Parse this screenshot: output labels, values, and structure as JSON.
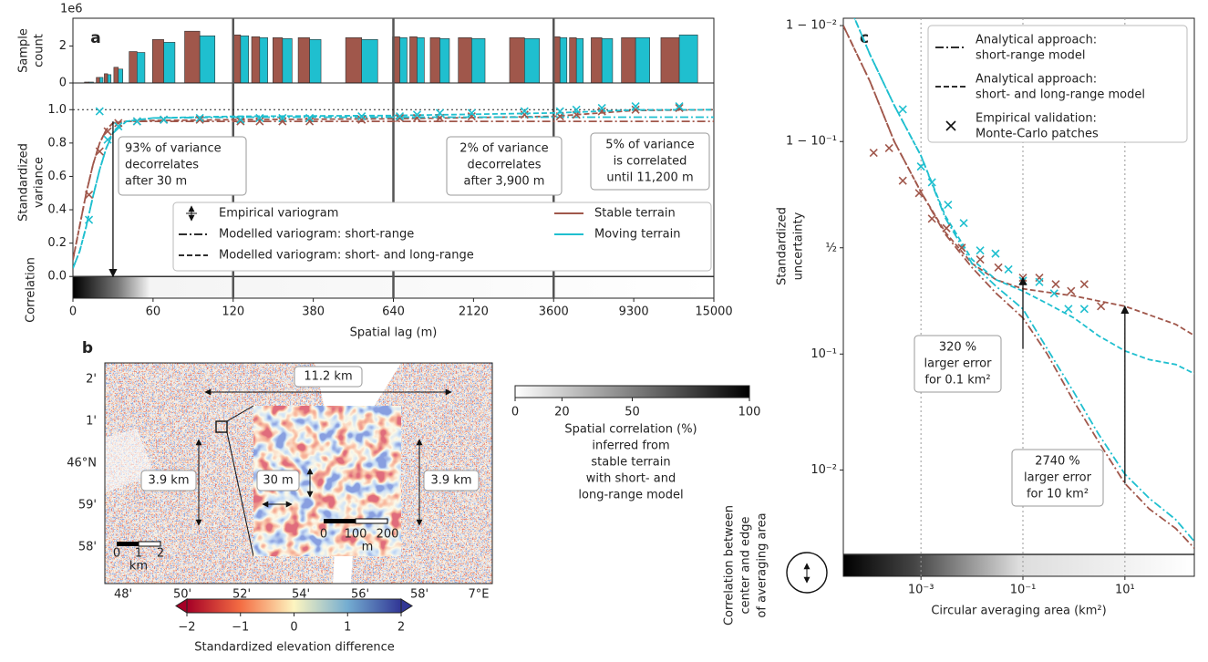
{
  "chart_data": [
    {
      "type": "bar",
      "panel": "a",
      "ylabel": [
        "Sample",
        "count"
      ],
      "offset_label": "1e6",
      "x": [
        12,
        20,
        26,
        34,
        48,
        68,
        95,
        144,
        206,
        280,
        368,
        537,
        758,
        1077,
        1498,
        2086,
        3062,
        4053,
        5219,
        7033,
        9430,
        12539
      ],
      "series": [
        {
          "color": "#a0574b",
          "values": [
            0.05,
            0.3,
            0.5,
            0.85,
            1.7,
            2.35,
            2.8,
            2.6,
            2.5,
            2.45,
            2.45,
            2.45,
            2.5,
            2.5,
            2.45,
            2.45,
            2.45,
            2.5,
            2.45,
            2.45,
            2.45,
            2.45
          ]
        },
        {
          "color": "#1fbfcf",
          "values": [
            0.05,
            0.3,
            0.45,
            0.75,
            1.65,
            2.2,
            2.55,
            2.55,
            2.45,
            2.4,
            2.35,
            2.35,
            2.45,
            2.45,
            2.4,
            2.4,
            2.4,
            2.45,
            2.4,
            2.4,
            2.45,
            2.6
          ]
        }
      ],
      "ylim": [
        0,
        3.5
      ],
      "yticks": [
        0,
        2
      ]
    },
    {
      "type": "line",
      "xscale": "piecewise",
      "ylabel": [
        "Standardized",
        "variance"
      ],
      "strip_label": "Correlation",
      "xlabel": "Spatial lag (m)",
      "xlim": [
        0,
        15000
      ],
      "xticks": [
        0,
        60,
        120,
        380,
        640,
        2120,
        3600,
        9300,
        15000
      ],
      "ylim": [
        -0.13,
        1.16
      ],
      "yticks": [
        {
          "value": 0,
          "label": "0.0"
        },
        {
          "value": 0.2,
          "label": "0.2"
        },
        {
          "value": 0.4,
          "label": "0.4"
        },
        {
          "value": 0.6,
          "label": "0.6"
        },
        {
          "value": 0.8,
          "label": "0.8"
        },
        {
          "value": 1,
          "label": "1.0"
        }
      ],
      "hline": 1,
      "curve_x": [
        0,
        5,
        10,
        15,
        20,
        25,
        30,
        40,
        60,
        120,
        640,
        3600,
        9300,
        15000
      ],
      "series": [
        {
          "color": "#a0574b",
          "style": "dashdot",
          "values": [
            0.1,
            0.3,
            0.5,
            0.67,
            0.8,
            0.88,
            0.92,
            0.93,
            0.93,
            0.93,
            0.93,
            0.93,
            0.93,
            0.93
          ]
        },
        {
          "color": "#a0574b",
          "style": "dashed",
          "values": [
            0.1,
            0.3,
            0.5,
            0.67,
            0.8,
            0.88,
            0.92,
            0.93,
            0.935,
            0.94,
            0.945,
            0.96,
            0.995,
            1.0
          ]
        },
        {
          "color": "#1fbfcf",
          "style": "dashdot",
          "values": [
            0.05,
            0.15,
            0.3,
            0.48,
            0.64,
            0.77,
            0.86,
            0.93,
            0.95,
            0.955,
            0.955,
            0.955,
            0.955,
            0.955
          ]
        },
        {
          "color": "#1fbfcf",
          "style": "dashed",
          "values": [
            0.05,
            0.15,
            0.3,
            0.48,
            0.64,
            0.77,
            0.86,
            0.93,
            0.95,
            0.96,
            0.965,
            0.98,
            0.998,
            1.0
          ]
        }
      ],
      "points": [
        {
          "color": "#a0574b",
          "x": [
            12,
            20,
            26,
            34,
            48,
            68,
            95,
            144,
            206,
            280,
            368,
            537,
            758,
            1077,
            1498,
            2086,
            3062,
            4053,
            5219,
            7033,
            9430,
            12539
          ],
          "values": [
            0.49,
            0.75,
            0.87,
            0.92,
            0.93,
            0.94,
            0.94,
            0.93,
            0.93,
            0.93,
            0.93,
            0.94,
            0.95,
            0.95,
            0.95,
            0.96,
            0.97,
            0.96,
            0.97,
            0.99,
            1.0,
            1.01
          ]
        },
        {
          "color": "#1fbfcf",
          "x": [
            12,
            20,
            26,
            34,
            48,
            68,
            95,
            144,
            206,
            280,
            368,
            537,
            758,
            1077,
            1498,
            2086,
            3062,
            4053,
            5219,
            7033,
            9430,
            12539
          ],
          "values": [
            0.34,
            0.99,
            0.82,
            0.9,
            0.93,
            0.94,
            0.95,
            0.94,
            0.95,
            0.95,
            0.95,
            0.96,
            0.96,
            0.97,
            0.98,
            0.98,
            0.99,
            0.99,
            1.0,
            1.01,
            1.02,
            1.02
          ]
        }
      ],
      "arrows": [
        {
          "x": 30,
          "from": 0.93,
          "to": 0
        }
      ],
      "annotations": [
        [
          "93% of variance",
          "decorrelates",
          "after 30 m"
        ],
        [
          "2% of variance",
          "decorrelates",
          "after 3,900 m"
        ],
        [
          "5% of variance",
          "is correlated",
          "until 11,200 m"
        ]
      ],
      "legend_styles": [
        {
          "label": "Empirical variogram",
          "style": "errorbar"
        },
        {
          "label": "Modelled variogram: short-range",
          "style": "dashdot"
        },
        {
          "label": "Modelled variogram: short- and long-range",
          "style": "dashed"
        }
      ],
      "legend_colors": [
        {
          "label": "Stable terrain",
          "color": "#a0574b"
        },
        {
          "label": "Moving terrain",
          "color": "#1fbfcf"
        }
      ]
    },
    {
      "type": "map",
      "panel": "b",
      "lat_labels": [
        "2'",
        "1'",
        "46°N",
        "59'",
        "58'"
      ],
      "lon_labels": [
        "48'",
        "50'",
        "52'",
        "54'",
        "56'",
        "58'",
        "7°E"
      ],
      "scale_labels": [
        "0",
        "1",
        "2",
        "km"
      ],
      "inset_scale_labels": [
        "0",
        "100",
        "200",
        "m"
      ],
      "distance_labels": [
        "11.2 km",
        "3.9 km",
        "3.9 km",
        "30 m"
      ],
      "colorbar": {
        "lim": [
          -2,
          2
        ],
        "ticks": [
          {
            "value": -2,
            "label": "−2"
          },
          {
            "value": -1,
            "label": "−1"
          },
          0,
          1,
          2
        ],
        "label": "Standardized elevation difference",
        "colors": [
          "#a50026",
          "#f46d43",
          "#fdf5c0",
          "#74add1",
          "#313695"
        ]
      },
      "correlation_colorbar": {
        "lim": [
          0,
          100
        ],
        "ticks": [
          0,
          20,
          50,
          100
        ],
        "label": [
          "Spatial correlation (%)",
          "inferred from",
          "stable terrain",
          "with short- and",
          "long-range model"
        ]
      }
    },
    {
      "type": "line",
      "panel": "c",
      "xscale": "log",
      "yscale": "logit",
      "grid": "x",
      "ylabel": [
        "Standardized",
        "uncertainty"
      ],
      "xlabel": "Circular averaging area (km²)",
      "side_label": [
        "Correlation between",
        "center and edge",
        "of averaging area"
      ],
      "xlim": [
        3e-05,
        230
      ],
      "xticks": [
        {
          "value": 0.001,
          "label": "10⁻³"
        },
        {
          "value": 0.1,
          "label": "10⁻¹"
        },
        {
          "value": 10,
          "label": "10¹"
        }
      ],
      "ylim": [
        0.00112,
        0.9914
      ],
      "yticks": [
        {
          "value": 0.99,
          "label": "1 − 10⁻²"
        },
        {
          "value": 0.9,
          "label": "1 − 10⁻¹"
        },
        {
          "value": 0.5,
          "label": "½"
        },
        {
          "value": 0.1,
          "label": "10⁻¹"
        },
        {
          "value": 0.01,
          "label": "10⁻²"
        }
      ],
      "curve_x": [
        3e-05,
        0.0001,
        0.0003,
        0.001,
        0.003,
        0.01,
        0.03,
        0.1,
        0.3,
        1,
        3,
        10,
        30,
        100,
        230
      ],
      "series": [
        {
          "color": "#a0574b",
          "style": "dashdot",
          "values": [
            0.99,
            0.969,
            0.9,
            0.76,
            0.57,
            0.4,
            0.28,
            0.19,
            0.1,
            0.04,
            0.018,
            0.0076,
            0.0045,
            0.003,
            0.002
          ]
        },
        {
          "color": "#a0574b",
          "style": "dashed",
          "values": [
            0.99,
            0.969,
            0.9,
            0.76,
            0.58,
            0.42,
            0.34,
            0.3,
            0.285,
            0.27,
            0.25,
            0.23,
            0.2,
            0.17,
            0.14
          ]
        },
        {
          "color": "#1fbfcf",
          "style": "dashdot",
          "values": [
            0.995,
            0.982,
            0.95,
            0.87,
            0.65,
            0.42,
            0.31,
            0.22,
            0.11,
            0.048,
            0.021,
            0.0092,
            0.0056,
            0.0036,
            0.0023
          ]
        },
        {
          "color": "#1fbfcf",
          "style": "dashed",
          "values": [
            0.995,
            0.982,
            0.95,
            0.87,
            0.66,
            0.44,
            0.34,
            0.29,
            0.24,
            0.19,
            0.14,
            0.106,
            0.09,
            0.082,
            0.069
          ]
        }
      ],
      "points": [
        {
          "color": "#a0574b",
          "x": [
            0.000118,
            0.000237,
            0.00044,
            0.00092,
            0.00164,
            0.00316,
            0.0063,
            0.0145,
            0.033,
            0.1,
            0.21,
            0.44,
            0.88,
            1.6,
            3.4
          ],
          "values": [
            0.877,
            0.887,
            0.8,
            0.756,
            0.646,
            0.6,
            0.5,
            0.44,
            0.4,
            0.35,
            0.35,
            0.32,
            0.29,
            0.32,
            0.23
          ]
        },
        {
          "color": "#1fbfcf",
          "x": [
            0.00044,
            0.001,
            0.00164,
            0.0034,
            0.0069,
            0.0145,
            0.029,
            0.052,
            0.1,
            0.21,
            0.41,
            0.78,
            1.6
          ],
          "values": [
            0.946,
            0.843,
            0.795,
            0.709,
            0.625,
            0.486,
            0.47,
            0.39,
            0.336,
            0.33,
            0.28,
            0.22,
            0.22
          ]
        }
      ],
      "arrows": [
        {
          "x": 0.1,
          "from": 0.11,
          "to": 0.35
        },
        {
          "x": 10,
          "from": 0.0076,
          "to": 0.23
        }
      ],
      "annotations": [
        [
          "320 %",
          "larger error",
          "for 0.1 km²"
        ],
        [
          "2740 %",
          "larger error",
          "for 10 km²"
        ]
      ],
      "legend_styles": [
        {
          "label": [
            "Analytical approach:",
            "short-range model"
          ],
          "style": "dashdot"
        },
        {
          "label": [
            "Analytical approach:",
            "short- and long-range model"
          ],
          "style": "dashed"
        },
        {
          "label": [
            "Empirical validation:",
            "Monte-Carlo patches"
          ],
          "style": "cross"
        }
      ]
    }
  ]
}
